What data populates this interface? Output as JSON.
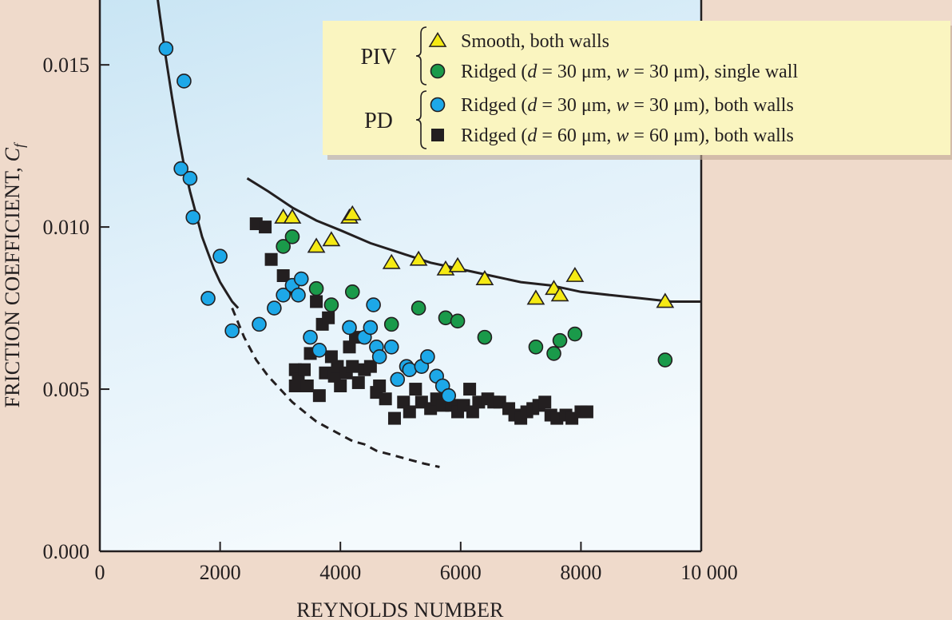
{
  "chart_data": {
    "type": "scatter",
    "title": "",
    "xlabel": "REYNOLDS NUMBER",
    "ylabel_prefix": "FRICTION COEFFICIENT, ",
    "ylabel_symbol": "C",
    "ylabel_subscript": "f",
    "xlim": [
      0,
      10000
    ],
    "ylim": [
      0,
      0.017
    ],
    "grid": false,
    "legend_position": "top-right",
    "x_ticks": [
      0,
      2000,
      4000,
      6000,
      8000,
      10000
    ],
    "x_tick_labels": [
      "0",
      "2000",
      "4000",
      "6000",
      "8000",
      "10 000"
    ],
    "y_ticks": [
      0,
      0.005,
      0.01,
      0.015
    ],
    "y_tick_labels": [
      "0.000",
      "0.005",
      "0.010",
      "0.015"
    ],
    "legend": {
      "groups": [
        {
          "label": "PIV",
          "entries": [
            0,
            1
          ]
        },
        {
          "label": "PD",
          "entries": [
            2,
            3
          ]
        }
      ]
    },
    "series": [
      {
        "name": "Smooth, both walls",
        "legend_parts": [
          [
            "Smooth, both walls",
            ""
          ]
        ],
        "marker": "triangle",
        "color": "#f5ea14",
        "points": [
          [
            3050,
            0.0103
          ],
          [
            3200,
            0.0103
          ],
          [
            3600,
            0.0094
          ],
          [
            3850,
            0.0096
          ],
          [
            4150,
            0.0103
          ],
          [
            4200,
            0.0104
          ],
          [
            4850,
            0.0089
          ],
          [
            5300,
            0.009
          ],
          [
            5750,
            0.0087
          ],
          [
            5950,
            0.0088
          ],
          [
            6400,
            0.0084
          ],
          [
            7250,
            0.0078
          ],
          [
            7550,
            0.0081
          ],
          [
            7650,
            0.0079
          ],
          [
            7900,
            0.0085
          ],
          [
            9400,
            0.0077
          ]
        ]
      },
      {
        "name": "Ridged (d = 30 μm, w = 30 μm), single wall",
        "legend_parts": [
          [
            "Ridged (",
            ""
          ],
          [
            "d",
            "i"
          ],
          [
            " = 30 μm, ",
            ""
          ],
          [
            "w",
            "i"
          ],
          [
            " = 30 μm), single wall",
            ""
          ]
        ],
        "marker": "circle",
        "color": "#1a9a4a",
        "points": [
          [
            3050,
            0.0094
          ],
          [
            3200,
            0.0097
          ],
          [
            3600,
            0.0081
          ],
          [
            3850,
            0.0076
          ],
          [
            4200,
            0.008
          ],
          [
            4850,
            0.007
          ],
          [
            5300,
            0.0075
          ],
          [
            5750,
            0.0072
          ],
          [
            5950,
            0.0071
          ],
          [
            6400,
            0.0066
          ],
          [
            7250,
            0.0063
          ],
          [
            7550,
            0.0061
          ],
          [
            7650,
            0.0065
          ],
          [
            7900,
            0.0067
          ],
          [
            9400,
            0.0059
          ]
        ]
      },
      {
        "name": "Ridged (d = 30 μm, w = 30 μm), both walls",
        "legend_parts": [
          [
            "Ridged (",
            ""
          ],
          [
            "d",
            "i"
          ],
          [
            " = 30 μm, ",
            ""
          ],
          [
            "w",
            "i"
          ],
          [
            " = 30 μm), both walls",
            ""
          ]
        ],
        "marker": "circle",
        "color": "#1da8e8",
        "points": [
          [
            1100,
            0.0155
          ],
          [
            1400,
            0.0145
          ],
          [
            1350,
            0.0118
          ],
          [
            1500,
            0.0115
          ],
          [
            1550,
            0.0103
          ],
          [
            1800,
            0.0078
          ],
          [
            2000,
            0.0091
          ],
          [
            2200,
            0.0068
          ],
          [
            2650,
            0.007
          ],
          [
            2900,
            0.0075
          ],
          [
            3050,
            0.0079
          ],
          [
            3200,
            0.0082
          ],
          [
            3300,
            0.0079
          ],
          [
            3350,
            0.0084
          ],
          [
            3500,
            0.0066
          ],
          [
            3650,
            0.0062
          ],
          [
            4150,
            0.0069
          ],
          [
            4400,
            0.0066
          ],
          [
            4500,
            0.0069
          ],
          [
            4550,
            0.0076
          ],
          [
            4600,
            0.0063
          ],
          [
            4650,
            0.006
          ],
          [
            4850,
            0.0063
          ],
          [
            4950,
            0.0053
          ],
          [
            5100,
            0.0057
          ],
          [
            5150,
            0.0056
          ],
          [
            5350,
            0.0057
          ],
          [
            5450,
            0.006
          ],
          [
            5600,
            0.0054
          ],
          [
            5700,
            0.0051
          ],
          [
            5800,
            0.0048
          ]
        ]
      },
      {
        "name": "Ridged (d = 60 μm, w = 60 μm), both walls",
        "legend_parts": [
          [
            "Ridged (",
            ""
          ],
          [
            "d",
            "i"
          ],
          [
            " = 60 μm, ",
            ""
          ],
          [
            "w",
            "i"
          ],
          [
            " = 60 μm), both walls",
            ""
          ]
        ],
        "marker": "square",
        "color": "#231f20",
        "points": [
          [
            2600,
            0.0101
          ],
          [
            2750,
            0.01
          ],
          [
            2850,
            0.009
          ],
          [
            3050,
            0.0085
          ],
          [
            3200,
            0.0081
          ],
          [
            3250,
            0.0056
          ],
          [
            3300,
            0.0053
          ],
          [
            3400,
            0.0056
          ],
          [
            3250,
            0.0051
          ],
          [
            3450,
            0.0051
          ],
          [
            3500,
            0.0061
          ],
          [
            3600,
            0.0077
          ],
          [
            3650,
            0.0048
          ],
          [
            3700,
            0.007
          ],
          [
            3800,
            0.0072
          ],
          [
            3750,
            0.0055
          ],
          [
            3850,
            0.006
          ],
          [
            3900,
            0.0054
          ],
          [
            3950,
            0.0057
          ],
          [
            4000,
            0.0051
          ],
          [
            4100,
            0.0055
          ],
          [
            4150,
            0.0063
          ],
          [
            4200,
            0.0057
          ],
          [
            4250,
            0.0066
          ],
          [
            4300,
            0.0052
          ],
          [
            4400,
            0.0056
          ],
          [
            4500,
            0.0057
          ],
          [
            4600,
            0.0049
          ],
          [
            4650,
            0.0051
          ],
          [
            4750,
            0.0047
          ],
          [
            4900,
            0.0041
          ],
          [
            5050,
            0.0046
          ],
          [
            5150,
            0.0043
          ],
          [
            5250,
            0.005
          ],
          [
            5350,
            0.0046
          ],
          [
            5500,
            0.0044
          ],
          [
            5600,
            0.0047
          ],
          [
            5700,
            0.0045
          ],
          [
            5850,
            0.0045
          ],
          [
            5950,
            0.0043
          ],
          [
            6050,
            0.0045
          ],
          [
            6150,
            0.005
          ],
          [
            6200,
            0.0043
          ],
          [
            6300,
            0.0046
          ],
          [
            6450,
            0.0047
          ],
          [
            6550,
            0.0046
          ],
          [
            6650,
            0.0046
          ],
          [
            6800,
            0.0044
          ],
          [
            6900,
            0.0042
          ],
          [
            7000,
            0.0041
          ],
          [
            7100,
            0.0043
          ],
          [
            7200,
            0.0044
          ],
          [
            7300,
            0.0045
          ],
          [
            7400,
            0.0046
          ],
          [
            7500,
            0.0042
          ],
          [
            7600,
            0.0041
          ],
          [
            7750,
            0.0042
          ],
          [
            7850,
            0.0041
          ],
          [
            8000,
            0.0043
          ],
          [
            8100,
            0.0043
          ]
        ]
      }
    ],
    "curves": [
      {
        "dash": false,
        "points": [
          [
            950,
            0.0172
          ],
          [
            1000,
            0.0165
          ],
          [
            1100,
            0.0152
          ],
          [
            1200,
            0.014
          ],
          [
            1300,
            0.0129
          ],
          [
            1400,
            0.0119
          ],
          [
            1500,
            0.0111
          ],
          [
            1600,
            0.0104
          ],
          [
            1700,
            0.0097
          ],
          [
            1800,
            0.0092
          ],
          [
            1900,
            0.0087
          ],
          [
            2000,
            0.0083
          ],
          [
            2100,
            0.008
          ],
          [
            2200,
            0.0077
          ],
          [
            2300,
            0.0075
          ]
        ]
      },
      {
        "dash": true,
        "points": [
          [
            2200,
            0.0075
          ],
          [
            2400,
            0.0066
          ],
          [
            2600,
            0.0059
          ],
          [
            2800,
            0.0054
          ],
          [
            3000,
            0.005
          ],
          [
            3200,
            0.0046
          ],
          [
            3400,
            0.0043
          ],
          [
            3600,
            0.004
          ],
          [
            3800,
            0.0038
          ],
          [
            4000,
            0.0036
          ],
          [
            4200,
            0.0034
          ],
          [
            4400,
            0.0033
          ],
          [
            4600,
            0.0031
          ],
          [
            4800,
            0.003
          ],
          [
            5000,
            0.0029
          ],
          [
            5200,
            0.0028
          ],
          [
            5400,
            0.0027
          ],
          [
            5650,
            0.0026
          ]
        ]
      },
      {
        "dash": false,
        "points": [
          [
            2450,
            0.0115
          ],
          [
            2800,
            0.0111
          ],
          [
            3200,
            0.0106
          ],
          [
            3600,
            0.0102
          ],
          [
            4000,
            0.0099
          ],
          [
            4500,
            0.0095
          ],
          [
            5000,
            0.0092
          ],
          [
            5500,
            0.0089
          ],
          [
            6000,
            0.0087
          ],
          [
            6500,
            0.0085
          ],
          [
            7000,
            0.0083
          ],
          [
            7500,
            0.0082
          ],
          [
            8000,
            0.008
          ],
          [
            8500,
            0.0079
          ],
          [
            9000,
            0.0078
          ],
          [
            9500,
            0.0077
          ],
          [
            10000,
            0.0077
          ]
        ]
      }
    ]
  }
}
